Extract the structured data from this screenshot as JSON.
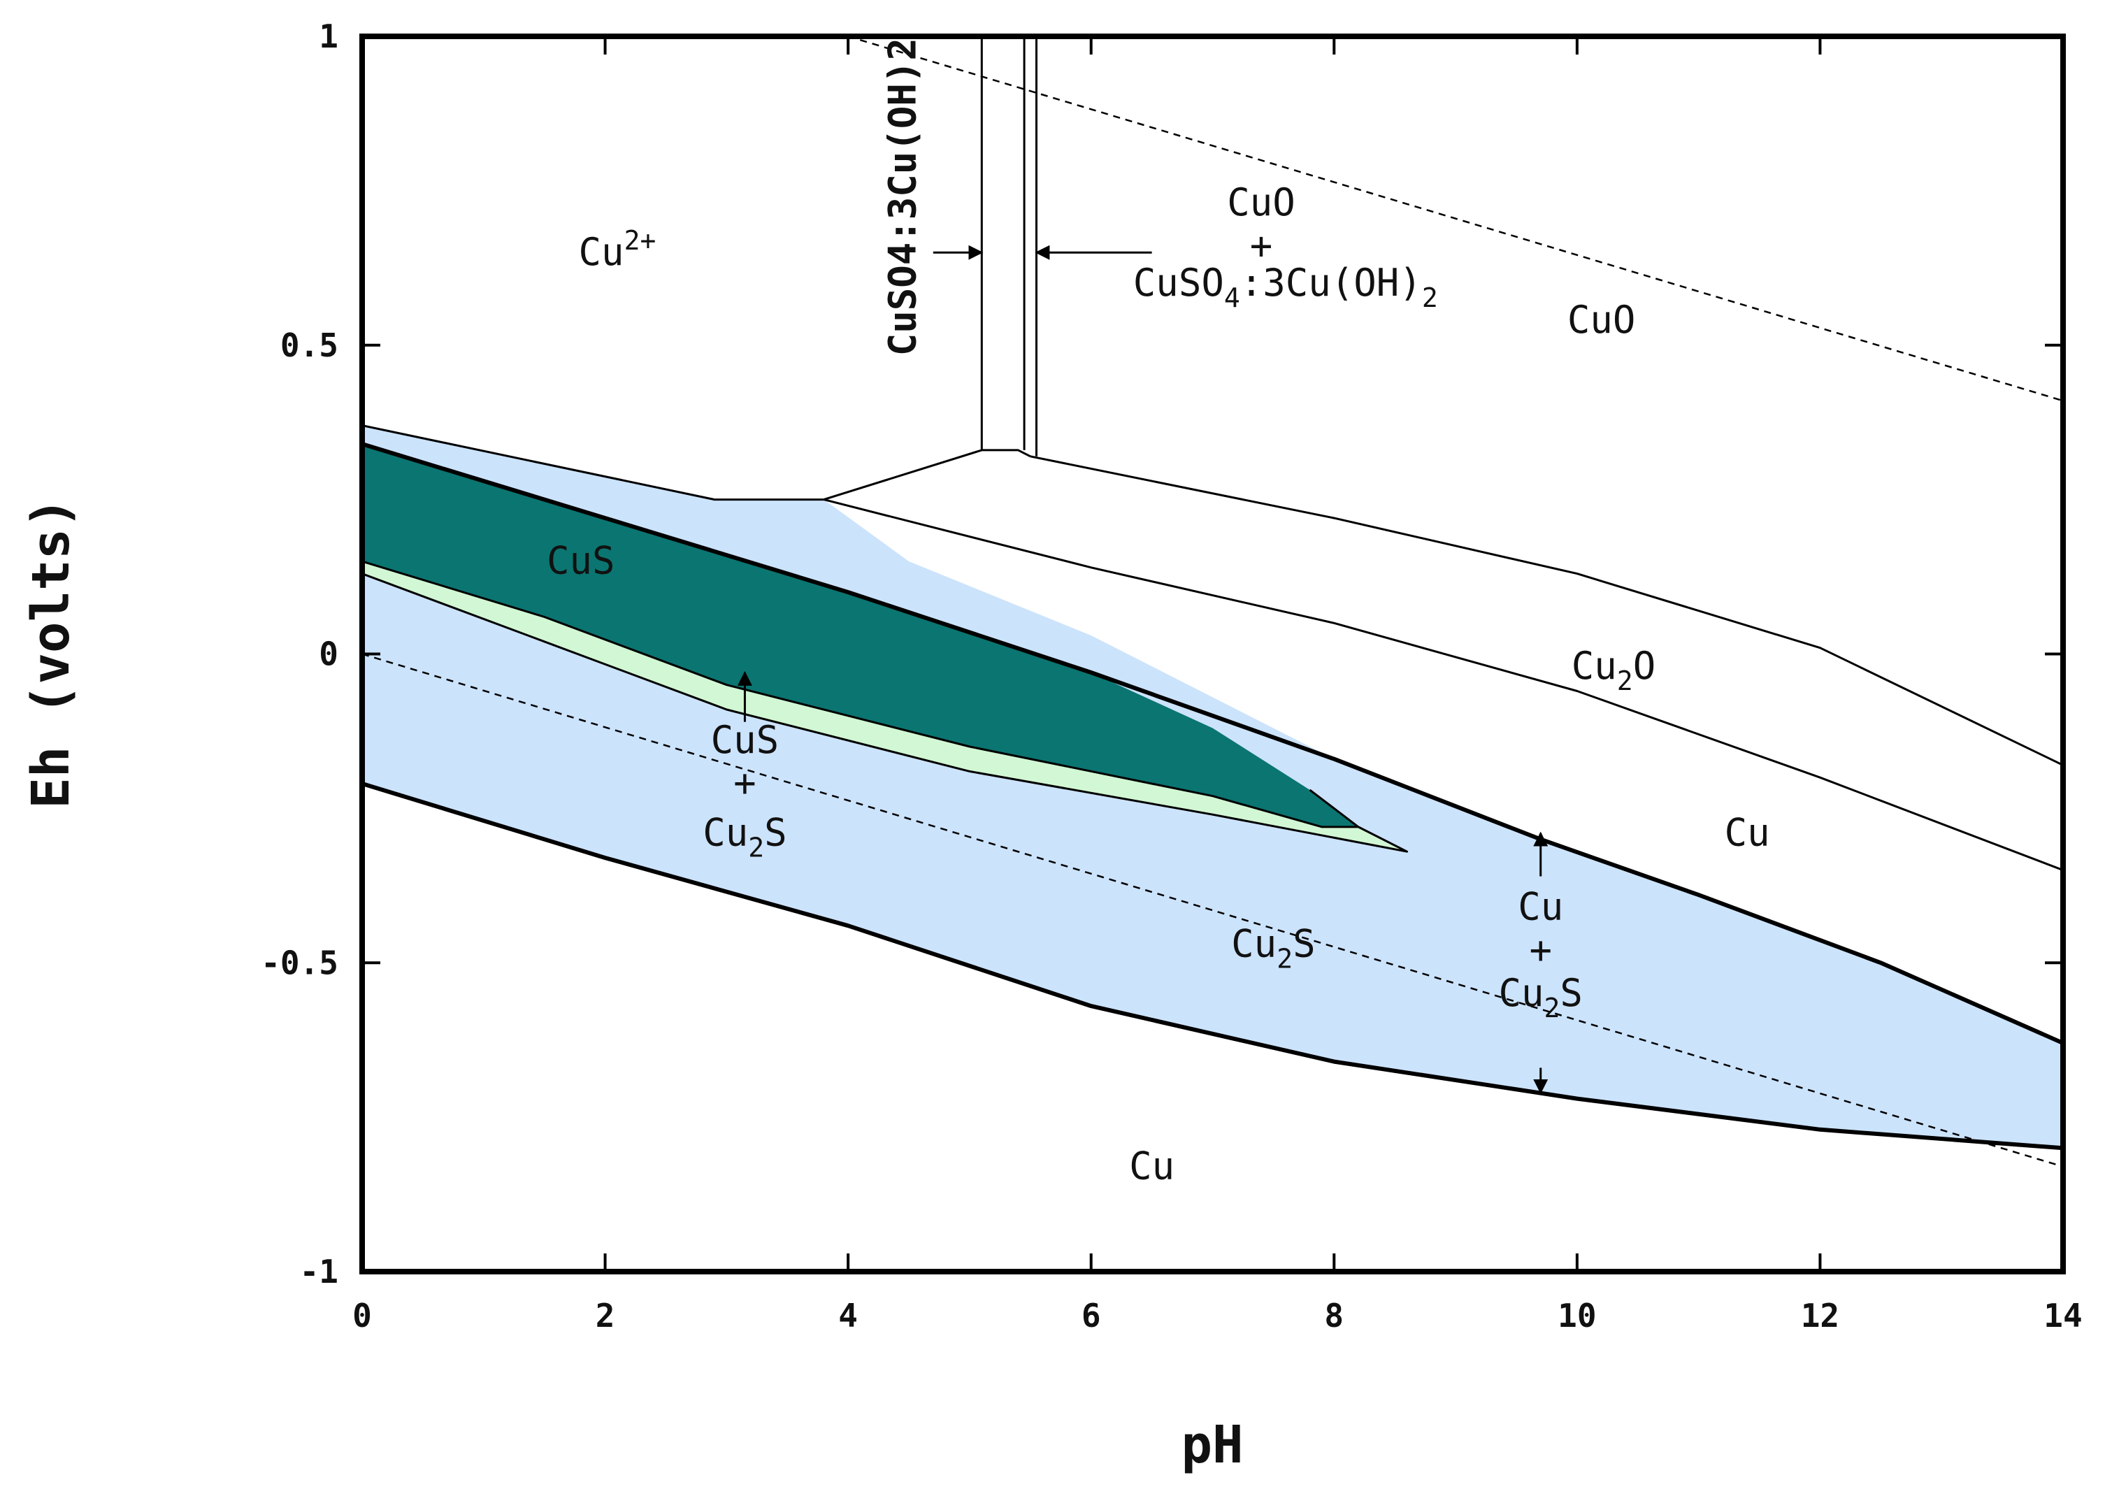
{
  "chart_data": {
    "type": "pourbaix-diagram",
    "title": "",
    "xlabel": "pH",
    "ylabel": "Eh (volts)",
    "xlim": [
      0,
      14
    ],
    "ylim": [
      -1,
      1
    ],
    "x_ticks": [
      0,
      2,
      4,
      6,
      8,
      10,
      12,
      14
    ],
    "y_ticks": [
      {
        "value": 1,
        "label": "1"
      },
      {
        "value": 0.5,
        "label": "0.5"
      },
      {
        "value": 0,
        "label": "0"
      },
      {
        "value": -0.5,
        "label": "-0.5"
      },
      {
        "value": -1,
        "label": "-1"
      }
    ],
    "colors": {
      "cu2s_field": "#cce3fc",
      "cus_field": "#0b7571",
      "cus_cu2s_field": "#d2f7d4",
      "boundary": "#000000"
    },
    "fields": [
      {
        "name": "cu2s-field",
        "fill": "cu2s_field",
        "points": [
          [
            0,
            0.37
          ],
          [
            2.9,
            0.25
          ],
          [
            3.8,
            0.25
          ],
          [
            4.5,
            0.15
          ],
          [
            6,
            0.03
          ],
          [
            8,
            -0.17
          ],
          [
            9.7,
            -0.3
          ],
          [
            11,
            -0.39
          ],
          [
            12.5,
            -0.5
          ],
          [
            14,
            -0.63
          ],
          [
            14,
            -0.8
          ],
          [
            12,
            -0.77
          ],
          [
            10,
            -0.72
          ],
          [
            8,
            -0.66
          ],
          [
            6,
            -0.57
          ],
          [
            4,
            -0.44
          ],
          [
            2,
            -0.33
          ],
          [
            0,
            -0.21
          ]
        ]
      },
      {
        "name": "cus-field",
        "fill": "cus_field",
        "points": [
          [
            0,
            0.34
          ],
          [
            2,
            0.22
          ],
          [
            4,
            0.1
          ],
          [
            6,
            -0.03
          ],
          [
            7,
            -0.12
          ],
          [
            7.8,
            -0.22
          ],
          [
            8.2,
            -0.28
          ],
          [
            7.9,
            -0.28
          ],
          [
            7,
            -0.23
          ],
          [
            5,
            -0.15
          ],
          [
            3,
            -0.05
          ],
          [
            1.5,
            0.06
          ],
          [
            0,
            0.15
          ]
        ]
      },
      {
        "name": "cus-cu2s-field",
        "fill": "cus_cu2s_field",
        "points": [
          [
            0,
            0.15
          ],
          [
            1.5,
            0.06
          ],
          [
            3,
            -0.05
          ],
          [
            5,
            -0.15
          ],
          [
            7,
            -0.23
          ],
          [
            7.9,
            -0.28
          ],
          [
            8.2,
            -0.28
          ],
          [
            8.6,
            -0.32
          ],
          [
            7,
            -0.26
          ],
          [
            5,
            -0.19
          ],
          [
            3,
            -0.09
          ],
          [
            1.5,
            0.02
          ],
          [
            0,
            0.13
          ]
        ]
      }
    ],
    "boundaries": [
      {
        "name": "cu2s-upper-boundary",
        "width": "thin",
        "points": [
          [
            0,
            0.37
          ],
          [
            2.9,
            0.25
          ],
          [
            3.8,
            0.25
          ]
        ]
      },
      {
        "name": "cu2s-cu-upper-boundary",
        "width": "thick",
        "points": [
          [
            0,
            0.34
          ],
          [
            2,
            0.22
          ],
          [
            4,
            0.1
          ],
          [
            6,
            -0.03
          ],
          [
            8,
            -0.17
          ],
          [
            9.7,
            -0.3
          ],
          [
            11,
            -0.39
          ],
          [
            12.5,
            -0.5
          ],
          [
            14,
            -0.63
          ]
        ]
      },
      {
        "name": "cus-lower-boundary",
        "width": "thin",
        "points": [
          [
            0,
            0.15
          ],
          [
            1.5,
            0.06
          ],
          [
            3,
            -0.05
          ],
          [
            5,
            -0.15
          ],
          [
            7,
            -0.23
          ],
          [
            7.9,
            -0.28
          ],
          [
            8.2,
            -0.28
          ],
          [
            7.8,
            -0.22
          ]
        ]
      },
      {
        "name": "cus-cu2s-lower-boundary",
        "width": "thin",
        "points": [
          [
            0,
            0.13
          ],
          [
            1.5,
            0.02
          ],
          [
            3,
            -0.09
          ],
          [
            5,
            -0.19
          ],
          [
            7,
            -0.26
          ],
          [
            8.6,
            -0.32
          ],
          [
            8.2,
            -0.28
          ]
        ]
      },
      {
        "name": "cu2s-lower-boundary",
        "width": "thick",
        "points": [
          [
            0,
            -0.21
          ],
          [
            2,
            -0.33
          ],
          [
            4,
            -0.44
          ],
          [
            6,
            -0.57
          ],
          [
            8,
            -0.66
          ],
          [
            10,
            -0.72
          ],
          [
            12,
            -0.77
          ],
          [
            14,
            -0.8
          ]
        ]
      },
      {
        "name": "cuo-cu2o-boundary",
        "width": "thin",
        "points": [
          [
            5.5,
            0.32
          ],
          [
            8,
            0.22
          ],
          [
            10,
            0.13
          ],
          [
            12,
            0.01
          ],
          [
            14,
            -0.18
          ]
        ]
      },
      {
        "name": "cu2o-cu-boundary",
        "width": "thin",
        "points": [
          [
            3.8,
            0.25
          ],
          [
            6,
            0.14
          ],
          [
            8,
            0.05
          ],
          [
            10,
            -0.06
          ],
          [
            12,
            -0.2
          ],
          [
            14,
            -0.35
          ]
        ]
      },
      {
        "name": "cu2-cu2o-boundary",
        "width": "thin",
        "points": [
          [
            3.8,
            0.25
          ],
          [
            5.1,
            0.33
          ],
          [
            5.4,
            0.33
          ],
          [
            5.5,
            0.32
          ]
        ]
      },
      {
        "name": "basic-sulfate-left-boundary",
        "width": "thin",
        "points": [
          [
            5.1,
            0.33
          ],
          [
            5.1,
            1.0
          ]
        ]
      },
      {
        "name": "basic-sulfate-mid-boundary",
        "width": "thin",
        "points": [
          [
            5.45,
            0.33
          ],
          [
            5.45,
            1.0
          ]
        ]
      },
      {
        "name": "basic-sulfate-right-boundary",
        "width": "thin",
        "points": [
          [
            5.55,
            0.32
          ],
          [
            5.55,
            1.0
          ]
        ]
      }
    ],
    "water_lines": [
      {
        "name": "oxygen-water-line",
        "points": [
          [
            4,
            1.0
          ],
          [
            14,
            0.41
          ]
        ]
      },
      {
        "name": "hydrogen-water-line",
        "points": [
          [
            0,
            0.0
          ],
          [
            14,
            -0.83
          ]
        ]
      }
    ],
    "arrows": [
      {
        "name": "basic-sulfate-arrow-left",
        "from": [
          4.7,
          0.65
        ],
        "to": [
          5.1,
          0.65
        ]
      },
      {
        "name": "basic-sulfate-arrow-right",
        "from": [
          6.5,
          0.65
        ],
        "to": [
          5.55,
          0.65
        ]
      },
      {
        "name": "cus-cu2s-pointer-arrow",
        "from": [
          3.15,
          -0.11
        ],
        "to": [
          3.15,
          -0.03
        ]
      },
      {
        "name": "cu-cu2s-pointer-arrow-up",
        "from": [
          9.7,
          -0.36
        ],
        "to": [
          9.7,
          -0.29
        ]
      },
      {
        "name": "cu-cu2s-pointer-arrow-down",
        "from": [
          9.7,
          -0.67
        ],
        "to": [
          9.7,
          -0.71
        ]
      }
    ],
    "annotations": [
      {
        "name": "cu2plus-label",
        "main": "Cu",
        "sup": "2+",
        "x": 2.1,
        "y": 0.63
      },
      {
        "name": "basic-sulfate-vertical-label",
        "text": "CuSO4:3Cu(OH)2",
        "x": 4.45,
        "y": 0.74,
        "rotate": true
      },
      {
        "name": "cuo-plus-label-top",
        "text": "CuO",
        "x": 7.4,
        "y": 0.71
      },
      {
        "name": "cuo-plus-sign",
        "text": "+",
        "x": 7.4,
        "y": 0.64
      },
      {
        "name": "basic-sulfate-plus-label",
        "main": "CuSO",
        "sub1": "4",
        "mid": ":3Cu(OH)",
        "sub2": "2",
        "x": 7.6,
        "y": 0.58
      },
      {
        "name": "cuo-field-label",
        "text": "CuO",
        "x": 10.2,
        "y": 0.52
      },
      {
        "name": "cus-field-label",
        "text": "CuS",
        "x": 1.8,
        "y": 0.13
      },
      {
        "name": "cu2o-field-label",
        "main": "Cu",
        "sub": "2",
        "tail": "O",
        "x": 10.3,
        "y": -0.04
      },
      {
        "name": "cus-cu2s-label-top",
        "text": "CuS",
        "x": 3.15,
        "y": -0.16
      },
      {
        "name": "cus-cu2s-plus-sign",
        "text": "+",
        "x": 3.15,
        "y": -0.23
      },
      {
        "name": "cus-cu2s-label-bottom",
        "main": "Cu",
        "sub": "2",
        "tail": "S",
        "x": 3.15,
        "y": -0.31
      },
      {
        "name": "cu-right-field-label",
        "text": "Cu",
        "x": 11.4,
        "y": -0.31
      },
      {
        "name": "cu2s-field-label",
        "main": "Cu",
        "sub": "2",
        "tail": "S",
        "x": 7.5,
        "y": -0.49
      },
      {
        "name": "cu-cu2s-label-top",
        "text": "Cu",
        "x": 9.7,
        "y": -0.43
      },
      {
        "name": "cu-cu2s-plus-sign",
        "text": "+",
        "x": 9.7,
        "y": -0.5
      },
      {
        "name": "cu-cu2s-label-bottom",
        "main": "Cu",
        "sub": "2",
        "tail": "S",
        "x": 9.7,
        "y": -0.57
      },
      {
        "name": "cu-bottom-field-label",
        "text": "Cu",
        "x": 6.5,
        "y": -0.85
      }
    ]
  }
}
